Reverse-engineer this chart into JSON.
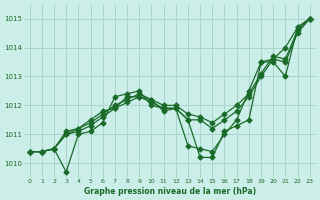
{
  "bg_color": "#cceee8",
  "grid_color": "#aad4cc",
  "line_color": "#1a6b2a",
  "xlabel": "Graphe pression niveau de la mer (hPa)",
  "ylim": [
    1009.5,
    1015.5
  ],
  "xlim": [
    -0.5,
    23.5
  ],
  "yticks": [
    1010,
    1011,
    1012,
    1013,
    1014,
    1015
  ],
  "xticks": [
    0,
    1,
    2,
    3,
    4,
    5,
    6,
    7,
    8,
    9,
    10,
    11,
    12,
    13,
    14,
    15,
    16,
    17,
    18,
    19,
    20,
    21,
    22,
    23
  ],
  "series": [
    [
      1010.4,
      1010.4,
      1010.5,
      1009.7,
      1011.0,
      1011.1,
      1011.4,
      1012.3,
      1012.4,
      1012.5,
      1012.0,
      1011.9,
      1011.9,
      1011.5,
      1010.2,
      1010.2,
      1011.1,
      1011.3,
      1011.5,
      1013.5,
      1013.5,
      1013.0,
      1014.7,
      1015.0
    ],
    [
      1010.4,
      1010.4,
      1010.5,
      1011.0,
      1011.1,
      1011.3,
      1011.6,
      1011.9,
      1012.1,
      1012.3,
      1012.1,
      1011.9,
      1011.9,
      1011.5,
      1011.5,
      1011.2,
      1011.5,
      1011.8,
      1012.3,
      1013.0,
      1013.6,
      1013.5,
      1014.5,
      1015.0
    ],
    [
      1010.4,
      1010.4,
      1010.5,
      1011.1,
      1011.2,
      1011.4,
      1011.7,
      1012.0,
      1012.2,
      1012.4,
      1012.2,
      1012.0,
      1012.0,
      1011.7,
      1011.6,
      1011.4,
      1011.7,
      1012.0,
      1012.4,
      1013.1,
      1013.7,
      1013.6,
      1014.6,
      1015.0
    ],
    [
      1010.4,
      1010.4,
      1010.5,
      1011.0,
      1011.2,
      1011.5,
      1011.8,
      1011.9,
      1012.3,
      1012.3,
      1012.2,
      1011.8,
      1011.9,
      1010.6,
      1010.5,
      1010.4,
      1011.0,
      1011.5,
      1012.5,
      1013.5,
      1013.6,
      1014.0,
      1014.7,
      1015.0
    ]
  ],
  "marker_indices": [
    [
      0,
      1,
      2,
      3,
      4,
      5,
      6,
      7,
      8,
      9,
      10,
      11,
      12,
      13,
      14,
      15,
      16,
      17,
      18,
      19,
      20,
      21,
      22,
      23
    ],
    [
      0,
      1,
      2,
      3,
      4,
      5,
      6,
      7,
      8,
      9,
      10,
      11,
      12,
      13,
      14,
      15,
      16,
      17,
      18,
      19,
      20,
      21,
      22,
      23
    ],
    [
      0,
      1,
      2,
      3,
      4,
      5,
      6,
      7,
      8,
      9,
      10,
      11,
      12,
      13,
      14,
      15,
      16,
      17,
      18,
      19,
      20,
      21,
      22,
      23
    ],
    [
      0,
      3,
      4,
      7,
      8,
      9,
      10,
      12,
      13,
      14,
      15,
      16,
      17,
      18,
      19,
      20,
      21,
      22,
      23
    ]
  ]
}
